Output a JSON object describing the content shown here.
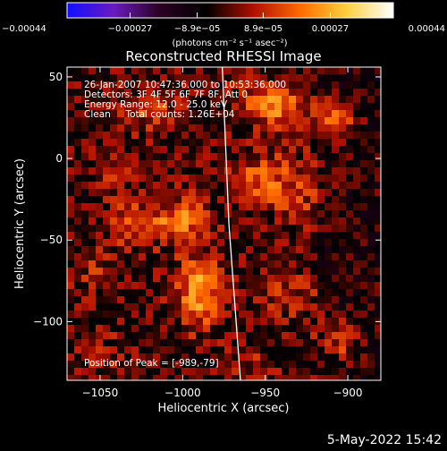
{
  "chart_data": {
    "type": "heatmap",
    "title": "Reconstructed RHESSI Image",
    "xlabel": "Heliocentric X (arcsec)",
    "ylabel": "Heliocentric Y (arcsec)",
    "xlim": [
      -1070,
      -880
    ],
    "ylim": [
      -136,
      56
    ],
    "x_ticks": [
      {
        "value": -1050,
        "label": "−1050"
      },
      {
        "value": -1000,
        "label": "−1000"
      },
      {
        "value": -950,
        "label": "−950"
      },
      {
        "value": -900,
        "label": "−900"
      }
    ],
    "y_ticks": [
      {
        "value": 50,
        "label": "50"
      },
      {
        "value": 0,
        "label": "0"
      },
      {
        "value": -50,
        "label": "−50"
      },
      {
        "value": -100,
        "label": "−100"
      }
    ],
    "annotations": [
      "26-Jan-2007 10:47:36.000 to 10:53:36.000",
      "Detectors: 3F 4F 5F 6F 7F 8F, Att 0",
      "Energy Range: 12.0 - 25.0 keV",
      "Clean     Total counts: 1.26E+04",
      "Position of Peak = [-989,-79]"
    ],
    "colorbar": {
      "range": [
        -0.00044,
        0.00044
      ],
      "tick_labels": [
        "−0.00044",
        "−0.00027",
        "−8.9e−05",
        "8.9e−05",
        "0.00027",
        "0.00044"
      ],
      "tick_values": [
        -0.00044,
        -0.00027,
        -8.9e-05,
        8.9e-05,
        0.00027,
        0.00044
      ],
      "units": "(photons cm⁻² s⁻¹ asec⁻²)",
      "colormap": [
        "#1010ff",
        "#6a1ac0",
        "#2a0020",
        "#000000",
        "#b01000",
        "#ff6a00",
        "#ffd040",
        "#ffffff"
      ]
    },
    "peak": {
      "x": -989,
      "y": -79
    },
    "hotspots": [
      {
        "x": -990,
        "y": -82,
        "amp": 1.0,
        "sx": 10,
        "sy": 15
      },
      {
        "x": -1000,
        "y": -38,
        "amp": 0.75,
        "sx": 12,
        "sy": 10
      },
      {
        "x": -1030,
        "y": -40,
        "amp": 0.55,
        "sx": 12,
        "sy": 10
      },
      {
        "x": -945,
        "y": 33,
        "amp": 0.8,
        "sx": 14,
        "sy": 10
      },
      {
        "x": -908,
        "y": 25,
        "amp": 0.65,
        "sx": 10,
        "sy": 8
      },
      {
        "x": -955,
        "y": -12,
        "amp": 0.55,
        "sx": 12,
        "sy": 12
      },
      {
        "x": -930,
        "y": -20,
        "amp": 0.45,
        "sx": 12,
        "sy": 15
      },
      {
        "x": -1020,
        "y": 30,
        "amp": 0.45,
        "sx": 12,
        "sy": 10
      },
      {
        "x": -1040,
        "y": -5,
        "amp": 0.35,
        "sx": 8,
        "sy": 10
      },
      {
        "x": -905,
        "y": -110,
        "amp": 0.45,
        "sx": 10,
        "sy": 10
      },
      {
        "x": -935,
        "y": -85,
        "amp": 0.4,
        "sx": 12,
        "sy": 10
      },
      {
        "x": -1055,
        "y": -70,
        "amp": 0.3,
        "sx": 10,
        "sy": 10
      },
      {
        "x": -1045,
        "y": -120,
        "amp": 0.25,
        "sx": 12,
        "sy": 10
      },
      {
        "x": -960,
        "y": -125,
        "amp": 0.3,
        "sx": 10,
        "sy": 8
      }
    ],
    "limb_line": [
      [
        -976,
        58
      ],
      [
        -972,
        -40
      ],
      [
        -965,
        -136
      ]
    ],
    "grid": false
  },
  "footer": {
    "timestamp": "5-May-2022 15:42"
  }
}
